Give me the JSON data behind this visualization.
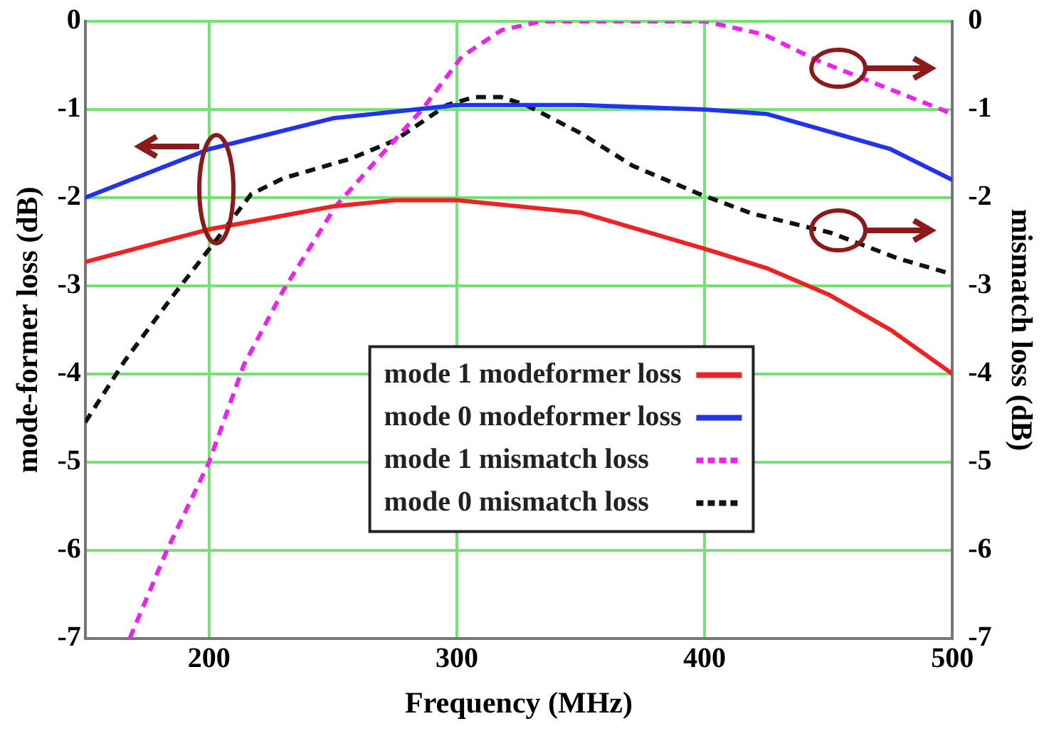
{
  "chart_data": {
    "type": "line",
    "xlabel": "Frequency (MHz)",
    "ylabel": "mode-former loss (dB)",
    "y2label": "mismatch loss (dB)",
    "xlim": [
      150,
      500
    ],
    "xticks": [
      200,
      300,
      400,
      500
    ],
    "ylim": [
      -7,
      0
    ],
    "yticks": [
      0,
      -1,
      -2,
      -3,
      -4,
      -5,
      -6,
      -7
    ],
    "y2lim": [
      -7,
      0
    ],
    "y2ticks": [
      0,
      -1,
      -2,
      -3,
      -4,
      -5,
      -6,
      -7
    ],
    "grid": true,
    "legend": "bottom",
    "marker": "none",
    "series": [
      {
        "name": "mode 1 modeformer loss",
        "color": "#ee2222",
        "line_style": "solid",
        "x": [
          150,
          200,
          250,
          275,
          300,
          350,
          400,
          425,
          450,
          475,
          500
        ],
        "values": [
          -2.73,
          -2.36,
          -2.1,
          -2.03,
          -2.03,
          -2.17,
          -2.58,
          -2.8,
          -3.1,
          -3.5,
          -4.0
        ]
      },
      {
        "name": "mode 0 modeformer loss",
        "color": "#2233ee",
        "line_style": "solid",
        "x": [
          150,
          200,
          250,
          300,
          350,
          400,
          425,
          450,
          475,
          500
        ],
        "values": [
          -2.0,
          -1.45,
          -1.1,
          -0.95,
          -0.95,
          -1.0,
          -1.05,
          -1.25,
          -1.45,
          -1.8
        ]
      },
      {
        "name": "mode 1 mismatch loss",
        "color": "#ee22ee",
        "line_style": "dashed",
        "axis": "y2",
        "x": [
          168,
          183,
          200,
          214,
          230,
          251,
          270,
          286,
          302,
          318,
          334,
          400,
          424,
          446,
          464,
          500
        ],
        "values": [
          -7,
          -6,
          -5,
          -3.9,
          -3.05,
          -2.1,
          -1.5,
          -1.0,
          -0.4,
          -0.1,
          0,
          0,
          -0.15,
          -0.45,
          -0.65,
          -1.05
        ]
      },
      {
        "name": "mode 0 mismatch loss",
        "color": "#111111",
        "line_style": "dashed",
        "axis": "y2",
        "x": [
          150,
          166,
          185,
          201,
          217,
          230,
          257,
          275,
          296,
          307,
          318,
          328,
          350,
          371,
          398,
          419,
          451,
          478,
          500
        ],
        "values": [
          -4.55,
          -3.85,
          -3.13,
          -2.55,
          -1.96,
          -1.78,
          -1.56,
          -1.35,
          -0.95,
          -0.86,
          -0.86,
          -0.95,
          -1.27,
          -1.64,
          -1.96,
          -2.18,
          -2.4,
          -2.69,
          -2.87
        ]
      }
    ]
  }
}
